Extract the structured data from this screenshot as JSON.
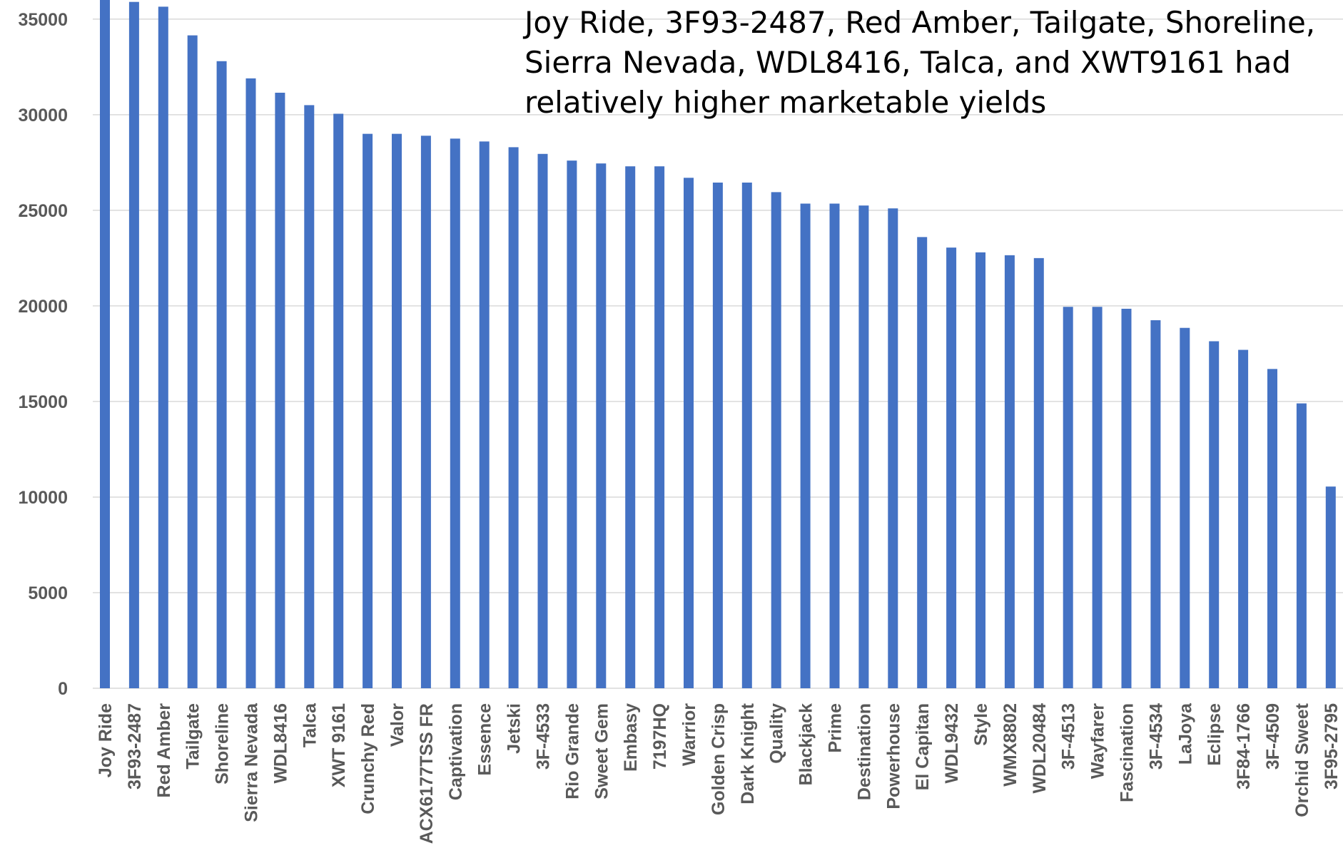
{
  "chart_data": {
    "type": "bar",
    "title": "",
    "xlabel": "",
    "ylabel": "",
    "ylim": [
      0,
      36000
    ],
    "yticks": [
      0,
      5000,
      10000,
      15000,
      20000,
      25000,
      30000,
      35000
    ],
    "grid": true,
    "legend": "none",
    "bar_color": "#4472c4",
    "annotation": "Joy Ride, 3F93-2487, Red Amber, Tailgate, Shoreline, Sierra  Nevada, WDL8416, Talca, and XWT9161 had relatively higher marketable yields",
    "categories": [
      "Joy Ride",
      "3F93-2487",
      "Red Amber",
      "Tailgate",
      "Shoreline",
      "Sierra Nevada",
      "WDL8416",
      "Talca",
      "XWT 9161",
      "Crunchy Red",
      "Valor",
      "ACX6177TSS FR",
      "Captivation",
      "Essence",
      "Jetski",
      "3F-4533",
      "Rio Grande",
      "Sweet Gem",
      "Embasy",
      "7197HQ",
      "Warrior",
      "Golden Crisp",
      "Dark Knight",
      "Quality",
      "Blackjack",
      "Prime",
      "Destination",
      "Powerhouse",
      "El Capitan",
      "WDL9432",
      "Style",
      "WMX8802",
      "WDL20484",
      "3F-4513",
      "Wayfarer",
      "Fascination",
      "3F-4534",
      "LaJoya",
      "Eclipse",
      "3F84-1766",
      "3F-4509",
      "Orchid Sweet",
      "3F95-2795"
    ],
    "values": [
      36000,
      35900,
      35650,
      34150,
      32800,
      31900,
      31150,
      30500,
      30050,
      29000,
      29000,
      28900,
      28750,
      28600,
      28300,
      27950,
      27600,
      27450,
      27300,
      27300,
      26700,
      26450,
      26450,
      25950,
      25350,
      25350,
      25250,
      25100,
      23600,
      23050,
      22800,
      22650,
      22500,
      19950,
      19950,
      19850,
      19250,
      18850,
      18150,
      17700,
      16700,
      14900,
      10550
    ]
  }
}
